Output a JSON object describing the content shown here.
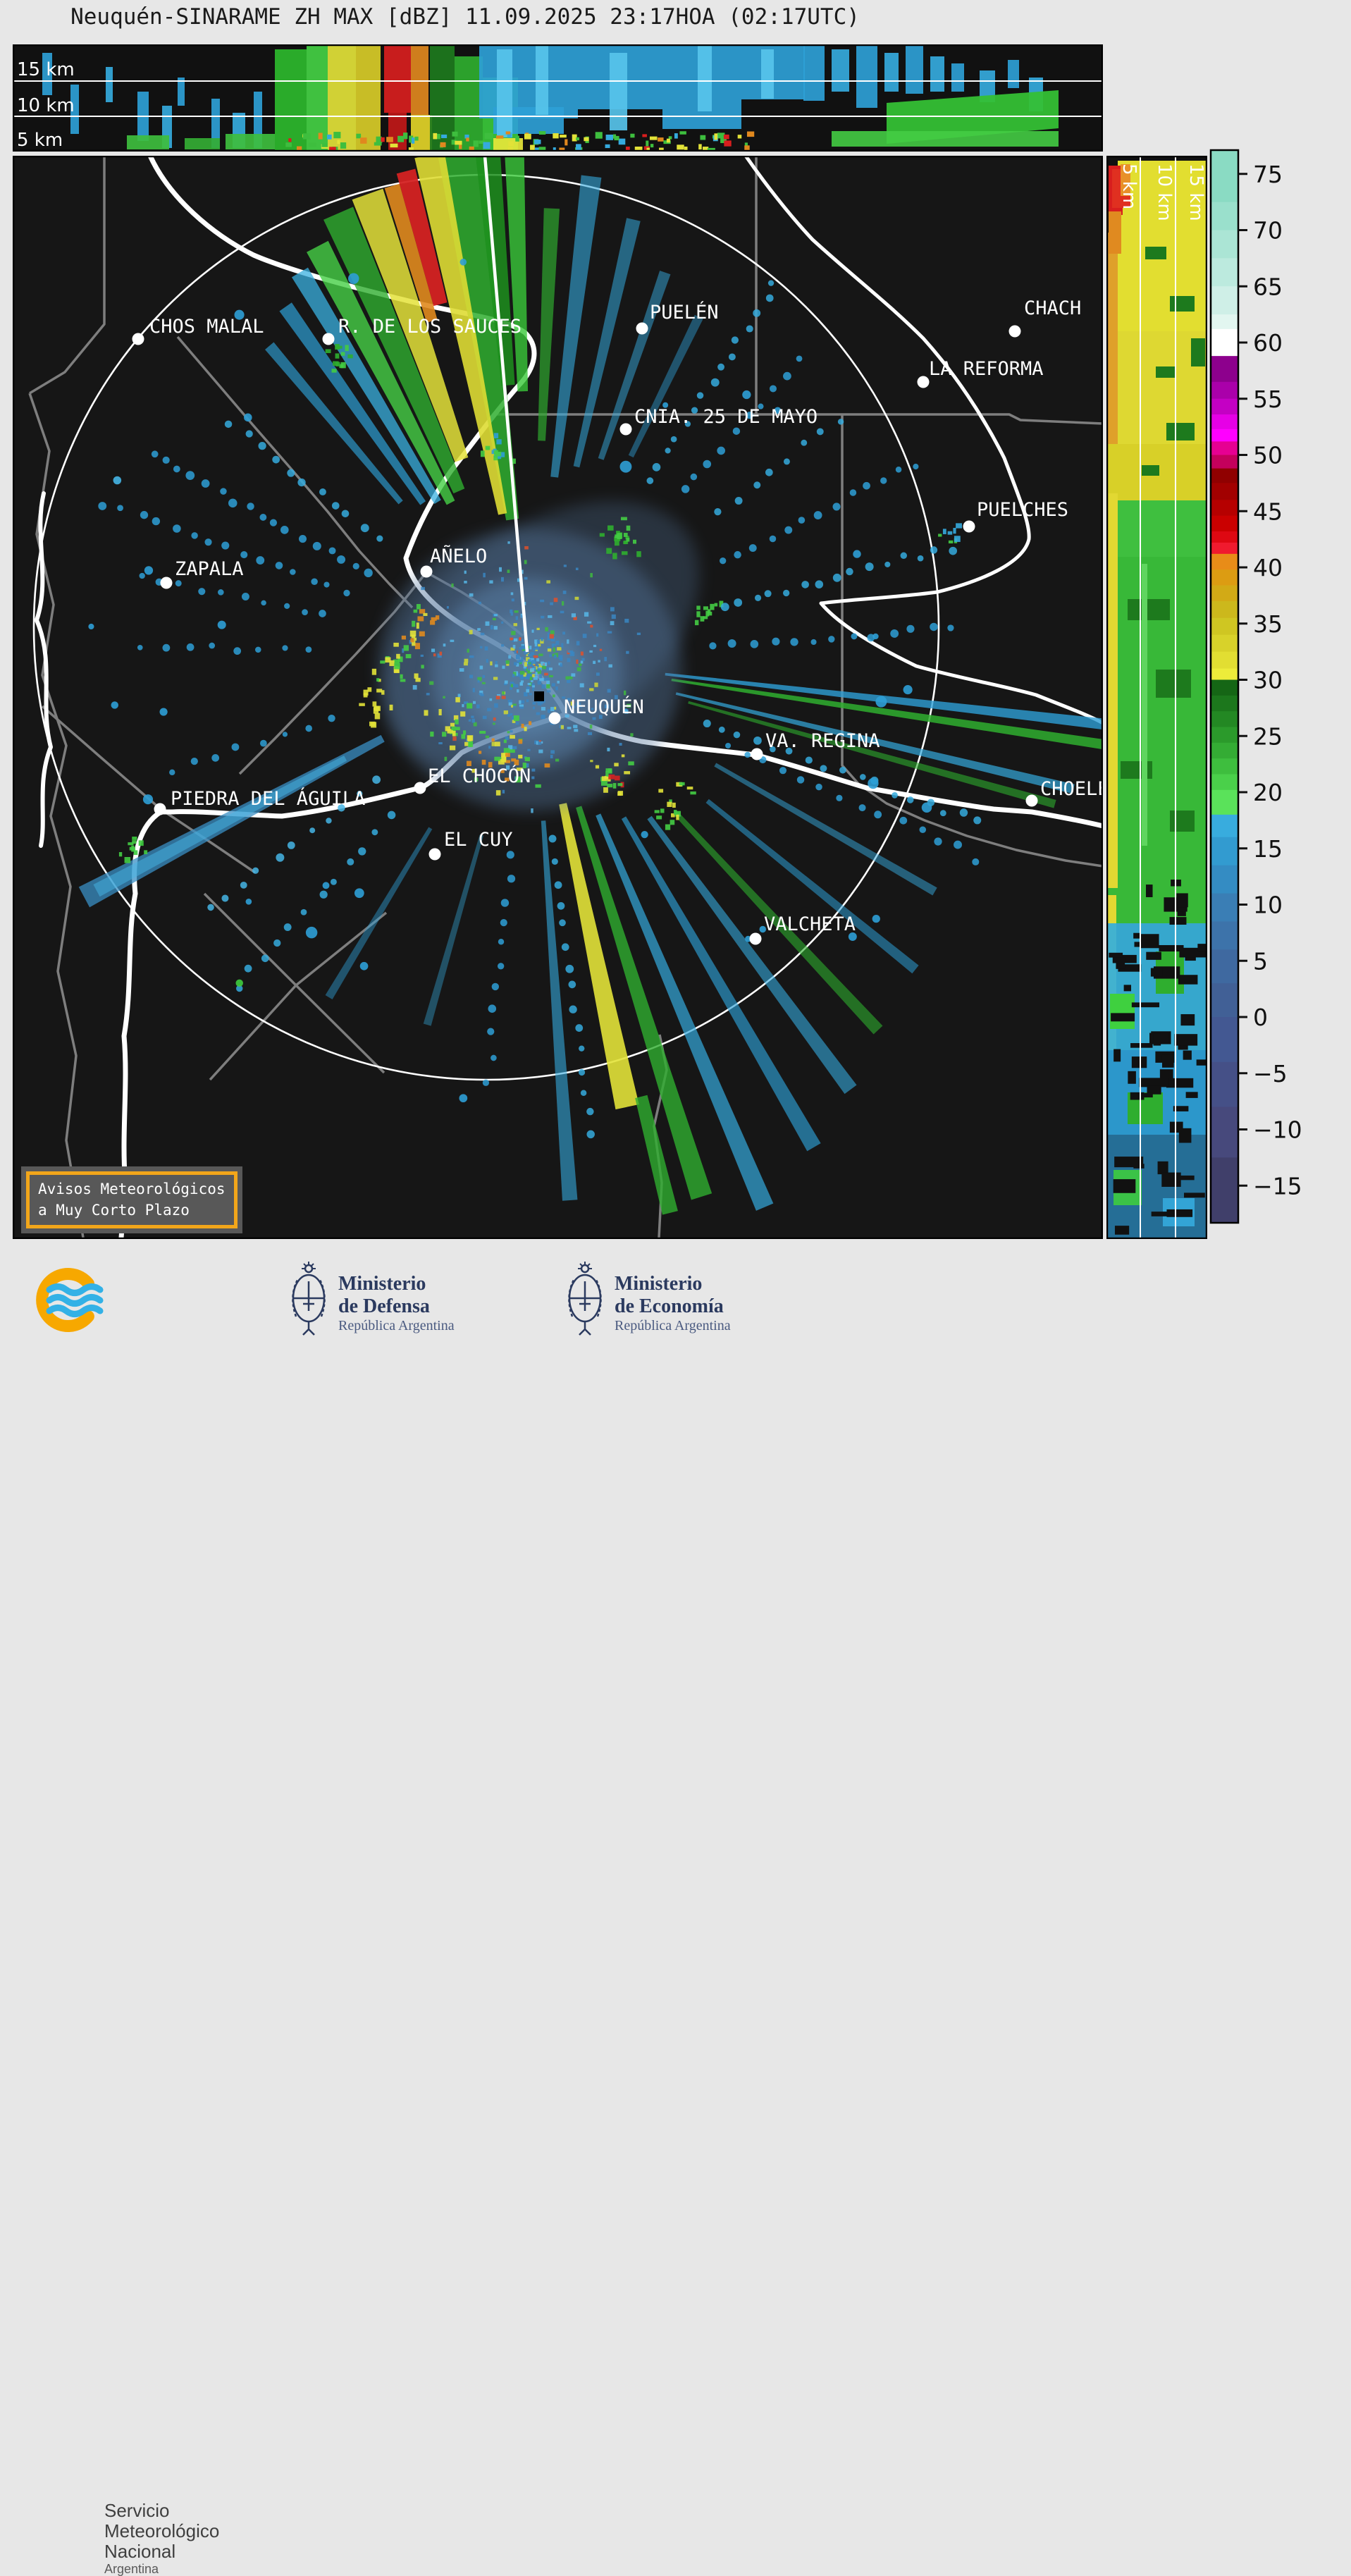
{
  "title": "Neuquén-SINARAME ZH MAX [dBZ] 11.09.2025 23:17HOA (02:17UTC)",
  "top_panel": {
    "axis_labels": [
      "15 km",
      "10 km",
      "5 km"
    ]
  },
  "right_panel": {
    "axis_labels": [
      "5 km",
      "10 km",
      "15 km"
    ]
  },
  "radar_site": {
    "name": "NEUQUÉN",
    "marker": [
      758,
      981
    ]
  },
  "cities": [
    {
      "name": "CHOS MALAL",
      "dot": [
        196,
        481
      ],
      "label": [
        212,
        472
      ]
    },
    {
      "name": "R. DE LOS SAUCES",
      "dot": [
        466,
        481
      ],
      "label": [
        480,
        472
      ]
    },
    {
      "name": "PUELÉN",
      "dot": [
        911,
        466
      ],
      "label": [
        922,
        452
      ]
    },
    {
      "name": "CHACH",
      "dot": [
        1440,
        470
      ],
      "label": [
        1453,
        446
      ]
    },
    {
      "name": "LA REFORMA",
      "dot": [
        1310,
        542
      ],
      "label": [
        1318,
        532
      ]
    },
    {
      "name": "CNIA. 25 DE MAYO",
      "dot": [
        888,
        609
      ],
      "label": [
        900,
        600
      ]
    },
    {
      "name": "PUELCHES",
      "dot": [
        1375,
        747
      ],
      "label": [
        1386,
        732
      ]
    },
    {
      "name": "AÑELO",
      "dot": [
        605,
        811
      ],
      "label": [
        610,
        798
      ]
    },
    {
      "name": "ZAPALA",
      "dot": [
        236,
        827
      ],
      "label": [
        248,
        816
      ]
    },
    {
      "name": "NEUQUÉN",
      "dot": [
        787,
        1019
      ],
      "label": [
        800,
        1012
      ]
    },
    {
      "name": "VA. REGINA",
      "dot": [
        1074,
        1070
      ],
      "label": [
        1086,
        1060
      ]
    },
    {
      "name": "EL CHOCÓN",
      "dot": [
        596,
        1118
      ],
      "label": [
        607,
        1110
      ]
    },
    {
      "name": "CHOELE",
      "dot": [
        1464,
        1136
      ],
      "label": [
        1476,
        1128
      ]
    },
    {
      "name": "EL CUY",
      "dot": [
        617,
        1212
      ],
      "label": [
        630,
        1200
      ]
    },
    {
      "name": "PIEDRA DEL ÁGUILA",
      "dot": [
        227,
        1148
      ],
      "label": [
        242,
        1142
      ]
    },
    {
      "name": "VALCHETA",
      "dot": [
        1072,
        1332
      ],
      "label": [
        1084,
        1320
      ]
    }
  ],
  "colorbar": {
    "unit": "dBZ",
    "ticks": [
      75,
      70,
      65,
      60,
      55,
      50,
      45,
      40,
      35,
      30,
      25,
      20,
      15,
      10,
      5,
      0,
      -5,
      -10,
      -15
    ],
    "bands": [
      [
        77.2,
        72.5,
        "#8adbc3"
      ],
      [
        72.5,
        70,
        "#9ae0cc"
      ],
      [
        70,
        67.5,
        "#abe5d5"
      ],
      [
        67.5,
        65,
        "#bceade"
      ],
      [
        65,
        62.5,
        "#cfefe7"
      ],
      [
        62.5,
        61.2,
        "#e2f6f0"
      ],
      [
        61.2,
        58.8,
        "#ffffff"
      ],
      [
        58.8,
        56.5,
        "#8d008d"
      ],
      [
        56.5,
        55,
        "#aa00aa"
      ],
      [
        55,
        53.6,
        "#c400c4"
      ],
      [
        53.6,
        52.3,
        "#e600e6"
      ],
      [
        52.3,
        51.2,
        "#ff00ff"
      ],
      [
        51.2,
        50,
        "#e60092"
      ],
      [
        50,
        48.8,
        "#c4005c"
      ],
      [
        48.8,
        47.5,
        "#900000"
      ],
      [
        47.5,
        46,
        "#a20000"
      ],
      [
        46,
        44.6,
        "#b60000"
      ],
      [
        44.6,
        43.2,
        "#ca0000"
      ],
      [
        43.2,
        42.2,
        "#de0812"
      ],
      [
        42.2,
        41.2,
        "#f01a2e"
      ],
      [
        41.2,
        39.8,
        "#e88c18"
      ],
      [
        39.8,
        38.4,
        "#dc9c12"
      ],
      [
        38.4,
        37,
        "#d2aa16"
      ],
      [
        37,
        35.5,
        "#ccb81c"
      ],
      [
        35.5,
        34,
        "#cfc622"
      ],
      [
        34,
        32.5,
        "#d8d22a"
      ],
      [
        32.5,
        31,
        "#e2de32"
      ],
      [
        31,
        30,
        "#edec3a"
      ],
      [
        30,
        28.6,
        "#156615"
      ],
      [
        28.6,
        27.2,
        "#1c771c"
      ],
      [
        27.2,
        25.8,
        "#238823"
      ],
      [
        25.8,
        24.4,
        "#2b9a2b"
      ],
      [
        24.4,
        23,
        "#34ac34"
      ],
      [
        23,
        21.6,
        "#3ebe3e"
      ],
      [
        21.6,
        20.2,
        "#4ad04a"
      ],
      [
        20.2,
        18,
        "#5ae25a"
      ],
      [
        18,
        16,
        "#38acde"
      ],
      [
        16,
        13.5,
        "#329bd0"
      ],
      [
        13.5,
        11,
        "#348cc3"
      ],
      [
        11,
        8.5,
        "#3a7eb5"
      ],
      [
        8.5,
        6,
        "#3d73aa"
      ],
      [
        6,
        3,
        "#3f69a0"
      ],
      [
        3,
        0,
        "#416096"
      ],
      [
        0,
        -4,
        "#435892"
      ],
      [
        -4,
        -8,
        "#455087"
      ],
      [
        -8,
        -12.5,
        "#47497c"
      ],
      [
        -12.5,
        -18.3,
        "#403f6a"
      ]
    ]
  },
  "warning_box": {
    "line1": "Avisos Meteorológicos",
    "line2": "a Muy Corto Plazo"
  },
  "footer": {
    "smn": {
      "line1": "Servicio",
      "line2": "Meteorológico",
      "line3": "Nacional",
      "line4": "Argentina"
    },
    "ministries": [
      {
        "line1": "Ministerio",
        "line2": "de Defensa",
        "sub": "República Argentina"
      },
      {
        "line1": "Ministerio",
        "line2": "de Economía",
        "sub": "República Argentina"
      }
    ]
  },
  "colors": {
    "accent_orange": "#f2a61a",
    "map_background": "#161616",
    "brand_blue": "#33b1e6"
  }
}
